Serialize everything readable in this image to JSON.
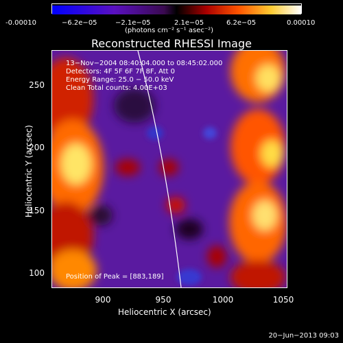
{
  "colorbar": {
    "ticks": [
      "-0.00010",
      "−6.2e−05",
      "−2.1e−05",
      "2.1e−05",
      "6.2e−05",
      "0.00010"
    ],
    "unit": "(photons cm⁻² s⁻¹ asec⁻²)",
    "colors": [
      "#0000ff",
      "#4400cc",
      "#6a1aa8",
      "#000000",
      "#aa0000",
      "#ff5500",
      "#ffaa00",
      "#ffff66",
      "#ffffff"
    ]
  },
  "title": "Reconstructed RHESSI Image",
  "annotations": {
    "time": "13−Nov−2004 08:40:04.000 to 08:45:02.000",
    "detectors": "Detectors: 4F 5F 6F 7F 8F, Att 0",
    "energy": "Energy Range: 25.0 − 50.0 keV",
    "clean": "Clean     Total counts: 4.00E+03",
    "peak": "Position of Peak = [883,189]"
  },
  "axes": {
    "xlabel": "Heliocentric X (arcsec)",
    "ylabel": "Heliocentric Y (arcsec)",
    "xticks": [
      "900",
      "950",
      "1000",
      "1050"
    ],
    "yticks": [
      "250",
      "200",
      "150",
      "100"
    ]
  },
  "timestamp": "20−Jun−2013 09:03"
}
